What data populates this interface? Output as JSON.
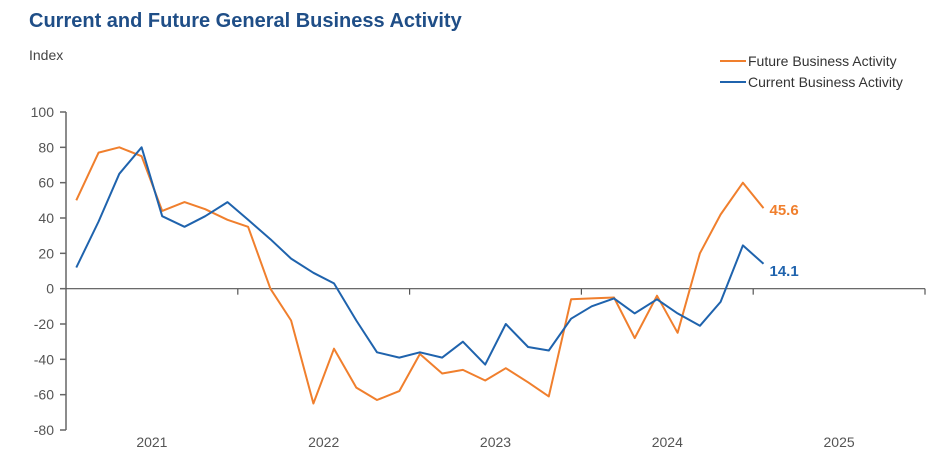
{
  "chart_data": {
    "type": "line",
    "title": "Current and Future General Business Activity",
    "ylabel": "Index",
    "xlabel": "",
    "ylim": [
      -80,
      100
    ],
    "xlim": [
      2021,
      2026
    ],
    "yticks": [
      "100",
      "80",
      "60",
      "40",
      "20",
      "0",
      "-20",
      "-40",
      "-60",
      "-80"
    ],
    "ytick_values": [
      100,
      80,
      60,
      40,
      20,
      0,
      -20,
      -40,
      -60,
      -80
    ],
    "xticks": [
      "2021",
      "2022",
      "2023",
      "2024",
      "2025"
    ],
    "grid": false,
    "legend_position": "top-right",
    "x": [
      2021.06,
      2021.19,
      2021.31,
      2021.44,
      2021.56,
      2021.69,
      2021.81,
      2021.94,
      2022.06,
      2022.19,
      2022.31,
      2022.44,
      2022.56,
      2022.69,
      2022.81,
      2022.94,
      2023.06,
      2023.19,
      2023.31,
      2023.44,
      2023.56,
      2023.69,
      2023.81,
      2023.94,
      2024.06,
      2024.19,
      2024.31,
      2024.44,
      2024.56,
      2024.69,
      2024.81,
      2024.94,
      2025.06
    ],
    "series": [
      {
        "name": "Future Business Activity",
        "color": "#f07f2d",
        "end_label": "45.6",
        "values": [
          50,
          77,
          80,
          75,
          44,
          49,
          45,
          39,
          35,
          0,
          -18,
          -65,
          -34,
          -56,
          -63,
          -58,
          -37,
          -48,
          -46,
          -52,
          -45,
          -53,
          -61,
          -6,
          -5.5,
          -5,
          -28,
          -4,
          -25,
          20,
          42,
          60,
          45.6
        ]
      },
      {
        "name": "Current Business Activity",
        "color": "#1f63ad",
        "end_label": "14.1",
        "values": [
          12,
          38,
          65,
          80,
          41,
          35,
          41,
          49,
          39,
          28,
          17,
          9,
          3,
          -18,
          -36,
          -39,
          -36,
          -39,
          -30,
          -43,
          -20,
          -33,
          -35,
          -17,
          -10,
          -5.5,
          -14,
          -6,
          -14,
          -21,
          -7.5,
          24.5,
          14.1
        ]
      }
    ]
  }
}
